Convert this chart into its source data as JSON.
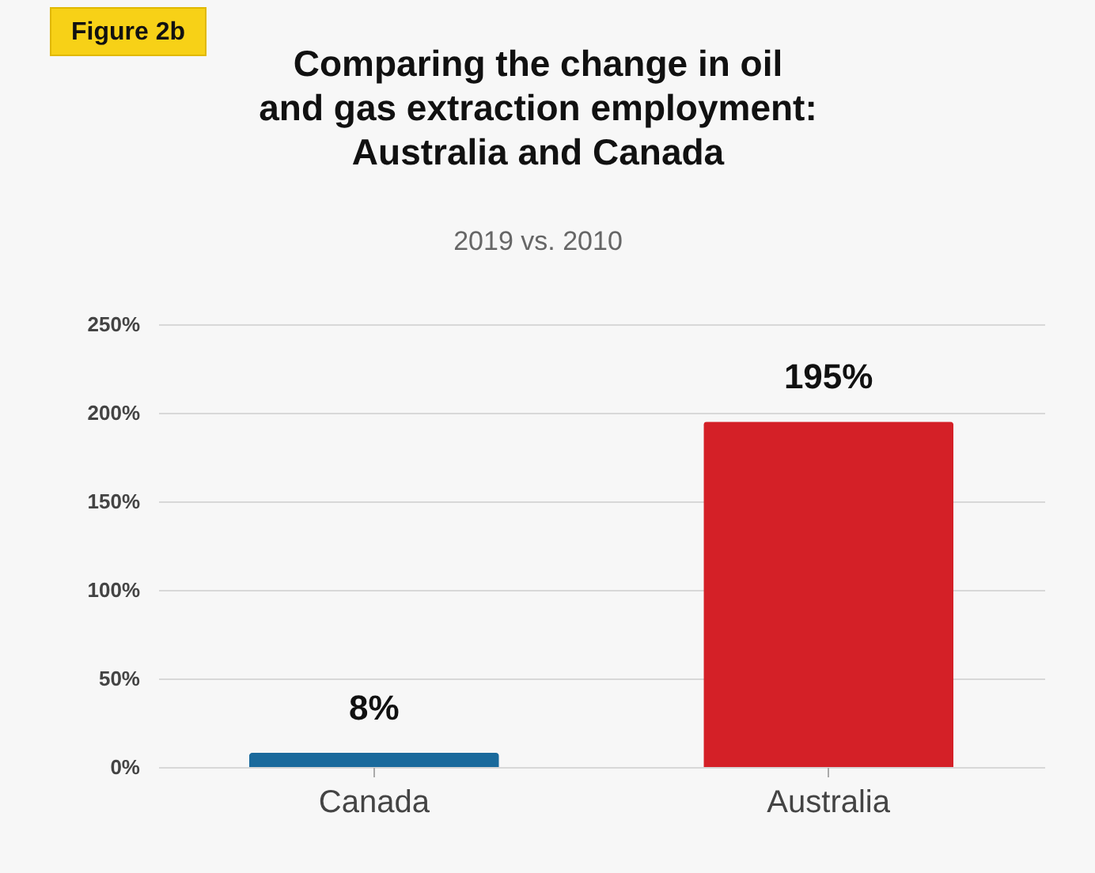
{
  "chart_data": {
    "type": "bar",
    "title": "Comparing the change in oil and gas extraction employment: Australia and Canada",
    "subtitle": "2019 vs. 2010",
    "annotations": [
      "Figure 2b"
    ],
    "categories": [
      "Canada",
      "Australia"
    ],
    "values": [
      8,
      195
    ],
    "colors": [
      "#1a6a9c",
      "#d42027"
    ],
    "value_labels": [
      "8%",
      "195%"
    ],
    "ylim": [
      0,
      250
    ],
    "yticks": [
      {
        "value": 0,
        "label": "0%"
      },
      {
        "value": 50,
        "label": "50%"
      },
      {
        "value": 100,
        "label": "100%"
      },
      {
        "value": 150,
        "label": "150%"
      },
      {
        "value": 200,
        "label": "200%"
      },
      {
        "value": 250,
        "label": "250%"
      }
    ],
    "grid": "y"
  }
}
